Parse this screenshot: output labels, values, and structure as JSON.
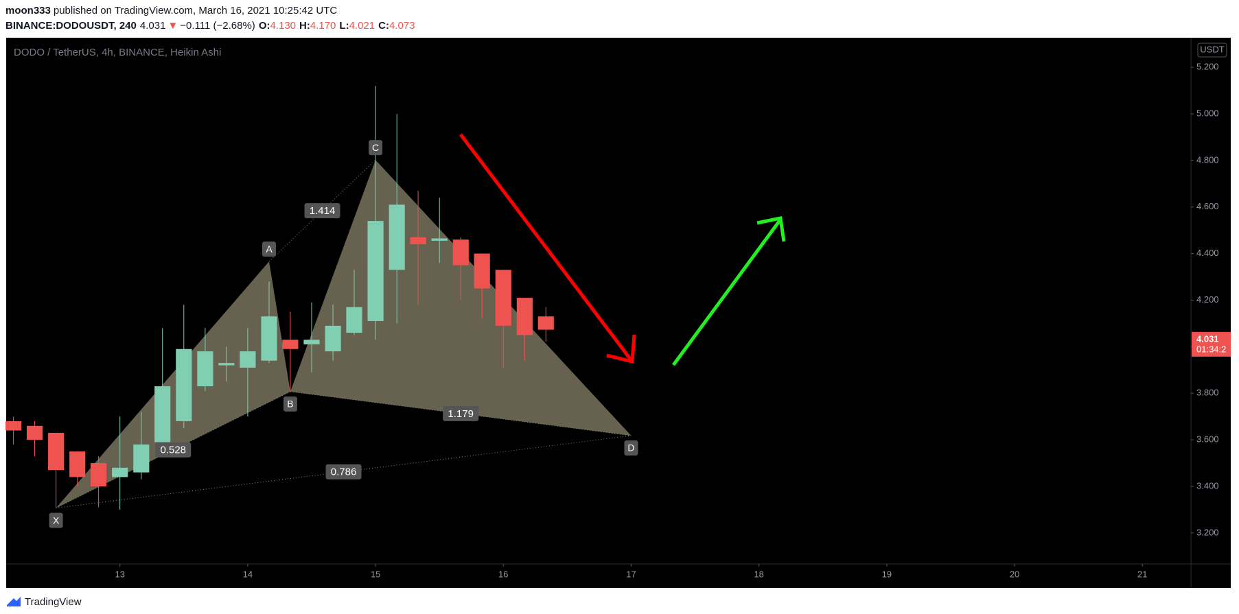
{
  "header": {
    "author": "moon333",
    "published": "published on TradingView.com, March 16, 2021 10:25:42 UTC",
    "symbol": "BINANCE:DODOUSDT, 240",
    "last": "4.031",
    "arrow": "▼",
    "change": "−0.111 (−2.68%)",
    "ohlc": [
      {
        "key": "O:",
        "value": "4.130"
      },
      {
        "key": "H:",
        "value": "4.170"
      },
      {
        "key": "L:",
        "value": "4.021"
      },
      {
        "key": "C:",
        "value": "4.073"
      }
    ]
  },
  "chart_data": {
    "type": "candlestick",
    "title": "DODO / TetherUS, 4h, BINANCE, Heikin Ashi",
    "y_unit": "USDT",
    "up_color": "#80cfb3",
    "down_color": "#ef5350",
    "x": [
      12.167,
      12.333,
      12.5,
      12.667,
      12.833,
      13.0,
      13.167,
      13.333,
      13.5,
      13.667,
      13.833,
      14.0,
      14.167,
      14.333,
      14.5,
      14.667,
      14.833,
      15.0,
      15.167,
      15.333,
      15.5,
      15.667,
      15.833,
      16.0,
      16.167,
      16.333
    ],
    "open": [
      3.68,
      3.66,
      3.63,
      3.55,
      3.5,
      3.44,
      3.46,
      3.59,
      3.68,
      3.83,
      3.92,
      3.91,
      3.94,
      4.03,
      4.01,
      3.98,
      4.06,
      4.11,
      4.33,
      4.47,
      4.455,
      4.46,
      4.4,
      4.33,
      4.21,
      4.13
    ],
    "high": [
      3.7,
      3.68,
      3.63,
      3.55,
      3.53,
      3.7,
      3.72,
      4.08,
      4.18,
      4.08,
      4.0,
      4.08,
      4.28,
      4.15,
      4.19,
      4.18,
      4.33,
      5.12,
      5.0,
      4.67,
      4.64,
      4.47,
      4.4,
      4.33,
      4.21,
      4.17
    ],
    "low": [
      3.58,
      3.53,
      3.31,
      3.4,
      3.31,
      3.3,
      3.43,
      3.57,
      3.65,
      3.81,
      3.85,
      3.7,
      3.93,
      3.81,
      3.89,
      3.94,
      4.05,
      4.03,
      4.1,
      4.18,
      4.36,
      4.2,
      4.12,
      3.91,
      3.94,
      4.021
    ],
    "close": [
      3.64,
      3.6,
      3.47,
      3.44,
      3.4,
      3.48,
      3.58,
      3.83,
      3.99,
      3.98,
      3.93,
      3.98,
      4.13,
      3.99,
      4.03,
      4.09,
      4.17,
      4.54,
      4.61,
      4.44,
      4.465,
      4.35,
      4.25,
      4.09,
      4.05,
      4.073
    ],
    "xlim": [
      12.11,
      21.38
    ],
    "xticks": [
      13,
      14,
      15,
      16,
      17,
      18,
      19,
      20,
      21
    ],
    "ylim": [
      3.067,
      5.327
    ],
    "yticks": [
      {
        "value": 3.2,
        "label": "3.200"
      },
      {
        "value": 3.4,
        "label": "3.400"
      },
      {
        "value": 3.6,
        "label": "3.600"
      },
      {
        "value": 3.8,
        "label": "3.800"
      },
      {
        "value": 4.0,
        "label": "4.000"
      },
      {
        "value": 4.2,
        "label": "4.200"
      },
      {
        "value": 4.4,
        "label": "4.400"
      },
      {
        "value": 4.6,
        "label": "4.600"
      },
      {
        "value": 4.8,
        "label": "4.800"
      },
      {
        "value": 5.0,
        "label": "5.000"
      },
      {
        "value": 5.2,
        "label": "5.200"
      }
    ],
    "last_price": {
      "value": 4.031,
      "label": "4.031"
    },
    "countdown": "01:34:2",
    "pattern": {
      "color": "#6b6753",
      "points": [
        {
          "label": "X",
          "x": 12.5,
          "y": 3.307
        },
        {
          "label": "A",
          "x": 14.167,
          "y": 4.366
        },
        {
          "label": "B",
          "x": 14.333,
          "y": 3.807
        },
        {
          "label": "C",
          "x": 15.0,
          "y": 4.802
        },
        {
          "label": "D",
          "x": 17.0,
          "y": 3.618
        }
      ],
      "ratios": {
        "XB": "0.528",
        "AC": "1.414",
        "BD": "1.179",
        "XD": "0.786"
      }
    }
  },
  "footer": "TradingView"
}
